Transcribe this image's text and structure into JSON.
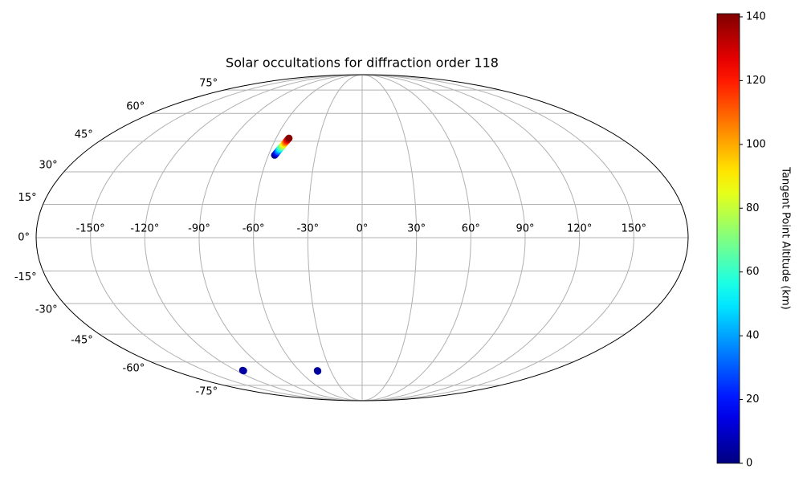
{
  "chart_data": {
    "type": "scatter",
    "projection": "mollweide",
    "title": "Solar occultations for diffraction order 118",
    "x": [
      -56.0,
      -55.6,
      -55.3,
      -54.9,
      -54.6,
      -54.2,
      -53.9,
      -53.5,
      -53.1,
      -52.8,
      -52.4,
      -52.1,
      -51.7,
      -51.4,
      -51.0,
      -113.5,
      -113.5,
      -42.7,
      -42.7
    ],
    "y": [
      38.0,
      38.6,
      39.2,
      39.8,
      40.4,
      41.0,
      41.6,
      42.2,
      42.8,
      43.5,
      44.1,
      44.7,
      45.3,
      45.9,
      46.5,
      -65.0,
      -65.3,
      -65.2,
      -65.5
    ],
    "c": [
      0,
      10,
      20,
      30,
      40,
      50,
      60,
      70,
      80,
      90,
      100,
      110,
      120,
      130,
      140,
      2,
      5,
      1,
      4
    ],
    "xlim": [
      -180,
      180
    ],
    "ylim": [
      -90,
      90
    ],
    "xticks": [
      {
        "value": -150,
        "label": "-150°"
      },
      {
        "value": -120,
        "label": "-120°"
      },
      {
        "value": -90,
        "label": "-90°"
      },
      {
        "value": -60,
        "label": "-60°"
      },
      {
        "value": -30,
        "label": "-30°"
      },
      {
        "value": 0,
        "label": "0°"
      },
      {
        "value": 30,
        "label": "30°"
      },
      {
        "value": 60,
        "label": "60°"
      },
      {
        "value": 90,
        "label": "90°"
      },
      {
        "value": 120,
        "label": "120°"
      },
      {
        "value": 150,
        "label": "150°"
      }
    ],
    "yticks": [
      {
        "value": -75,
        "label": "-75°"
      },
      {
        "value": -60,
        "label": "-60°"
      },
      {
        "value": -45,
        "label": "-45°"
      },
      {
        "value": -30,
        "label": "-30°"
      },
      {
        "value": -15,
        "label": "-15°"
      },
      {
        "value": 0,
        "label": "0°"
      },
      {
        "value": 15,
        "label": "15°"
      },
      {
        "value": 30,
        "label": "30°"
      },
      {
        "value": 45,
        "label": "45°"
      },
      {
        "value": 60,
        "label": "60°"
      },
      {
        "value": 75,
        "label": "75°"
      }
    ],
    "grid": true,
    "colormap": "jet",
    "colorbar": {
      "label": "Tangent Point Altitude (km)",
      "lim": [
        0,
        141
      ],
      "ticks": [
        0,
        20,
        40,
        60,
        80,
        100,
        120,
        140
      ]
    }
  }
}
